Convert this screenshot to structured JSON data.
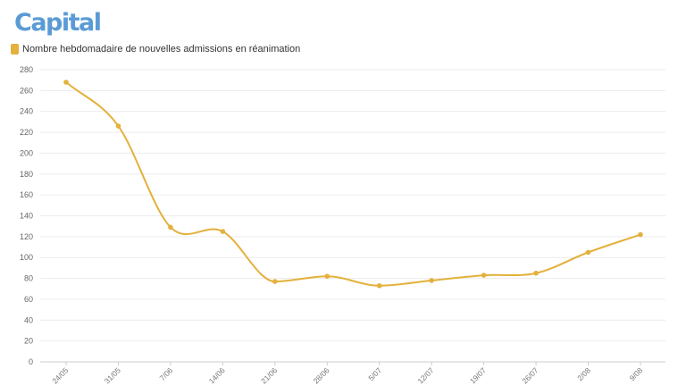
{
  "brand": {
    "logo_text": "Capital",
    "logo_color": "#5b9bd5"
  },
  "chart_data": {
    "type": "line",
    "categories": [
      "24/05",
      "31/05",
      "7/06",
      "14/06",
      "21/06",
      "28/06",
      "5/07",
      "12/07",
      "19/07",
      "26/07",
      "2/08",
      "9/08"
    ],
    "series": [
      {
        "name": "Nombre hebdomadaire de nouvelles admissions en réanimation",
        "values": [
          268,
          226,
          129,
          125,
          77,
          82,
          73,
          78,
          83,
          85,
          105,
          122
        ],
        "color": "#e3b13c"
      }
    ],
    "ylim": [
      0,
      280
    ],
    "yticks": [
      0,
      20,
      40,
      60,
      80,
      100,
      120,
      140,
      160,
      180,
      200,
      220,
      240,
      260,
      280
    ],
    "legend": "top-left",
    "grid": true,
    "curve": "smooth",
    "xlabel": "",
    "ylabel": ""
  }
}
